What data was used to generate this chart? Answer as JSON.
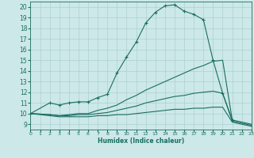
{
  "xlabel": "Humidex (Indice chaleur)",
  "xlim": [
    0,
    23
  ],
  "ylim": [
    8.5,
    20.5
  ],
  "yticks": [
    9,
    10,
    11,
    12,
    13,
    14,
    15,
    16,
    17,
    18,
    19,
    20
  ],
  "xticks": [
    0,
    1,
    2,
    3,
    4,
    5,
    6,
    7,
    8,
    9,
    10,
    11,
    12,
    13,
    14,
    15,
    16,
    17,
    18,
    19,
    20,
    21,
    22,
    23
  ],
  "bg_color": "#cce8e8",
  "grid_color": "#aed0d0",
  "line_color": "#1a6e60",
  "lines": [
    {
      "x": [
        0,
        2,
        3,
        4,
        5,
        6,
        7,
        8,
        9,
        10,
        11,
        12,
        13,
        14,
        15,
        16,
        17,
        18,
        19,
        20,
        21
      ],
      "y": [
        10.0,
        11.0,
        10.8,
        11.0,
        11.1,
        11.1,
        11.5,
        11.8,
        13.8,
        15.3,
        16.7,
        18.5,
        19.5,
        20.1,
        20.2,
        19.6,
        19.3,
        18.8,
        15.0,
        11.9,
        9.4
      ],
      "marker": true
    },
    {
      "x": [
        0,
        2,
        3,
        4,
        5,
        6,
        7,
        8,
        9,
        10,
        11,
        12,
        13,
        14,
        15,
        16,
        17,
        18,
        19,
        20,
        21,
        22,
        23
      ],
      "y": [
        10.0,
        9.9,
        9.8,
        9.9,
        10.0,
        10.0,
        10.3,
        10.5,
        10.8,
        11.3,
        11.7,
        12.2,
        12.6,
        13.0,
        13.4,
        13.8,
        14.2,
        14.5,
        14.9,
        15.0,
        9.4,
        9.2,
        9.0
      ],
      "marker": false
    },
    {
      "x": [
        0,
        2,
        3,
        4,
        5,
        6,
        7,
        8,
        9,
        10,
        11,
        12,
        13,
        14,
        15,
        16,
        17,
        18,
        19,
        20,
        21,
        22,
        23
      ],
      "y": [
        10.0,
        9.9,
        9.8,
        9.8,
        9.9,
        9.9,
        10.0,
        10.1,
        10.3,
        10.5,
        10.7,
        11.0,
        11.2,
        11.4,
        11.6,
        11.7,
        11.9,
        12.0,
        12.1,
        11.9,
        9.3,
        9.1,
        8.9
      ],
      "marker": false
    },
    {
      "x": [
        0,
        2,
        3,
        4,
        5,
        6,
        7,
        8,
        9,
        10,
        11,
        12,
        13,
        14,
        15,
        16,
        17,
        18,
        19,
        20,
        21,
        22,
        23
      ],
      "y": [
        10.0,
        9.8,
        9.7,
        9.7,
        9.7,
        9.7,
        9.8,
        9.8,
        9.9,
        9.9,
        10.0,
        10.1,
        10.2,
        10.3,
        10.4,
        10.4,
        10.5,
        10.5,
        10.6,
        10.6,
        9.2,
        9.0,
        8.8
      ],
      "marker": false
    }
  ]
}
